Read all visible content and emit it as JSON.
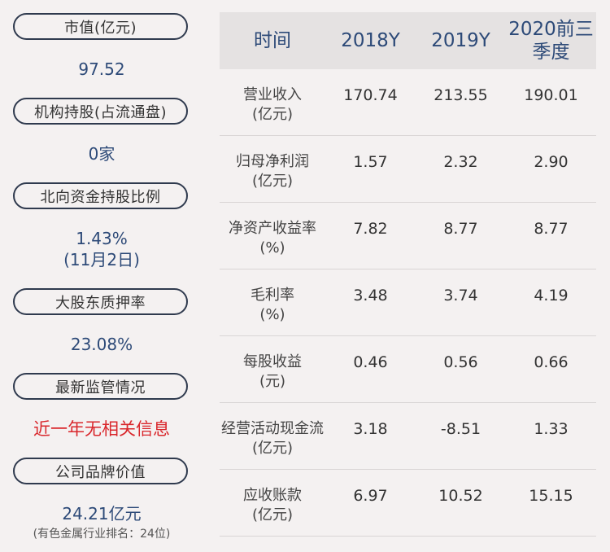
{
  "left_panel": {
    "items": [
      {
        "label": "市值(亿元)",
        "value": "97.52"
      },
      {
        "label": "机构持股(占流通盘)",
        "value": "0家"
      },
      {
        "label": "北向资金持股比例",
        "value": "1.43%",
        "value2": "(11月2日)"
      },
      {
        "label": "大股东质押率",
        "value": "23.08%"
      },
      {
        "label": "最新监管情况",
        "value": "近一年无相关信息"
      },
      {
        "label": "公司品牌价值",
        "value": "24.21亿元",
        "note": "(有色金属行业排名：24位)"
      }
    ]
  },
  "table": {
    "headers": [
      "时间",
      "2018Y",
      "2019Y",
      "2020前三季度"
    ],
    "rows": [
      {
        "label1": "营业收入",
        "label2": "(亿元)",
        "values": [
          "170.74",
          "213.55",
          "190.01"
        ]
      },
      {
        "label1": "归母净利润",
        "label2": "(亿元)",
        "values": [
          "1.57",
          "2.32",
          "2.90"
        ]
      },
      {
        "label1": "净资产收益率",
        "label2": "(%)",
        "values": [
          "7.82",
          "8.77",
          "8.77"
        ]
      },
      {
        "label1": "毛利率",
        "label2": "(%)",
        "values": [
          "3.48",
          "3.74",
          "4.19"
        ]
      },
      {
        "label1": "每股收益",
        "label2": "(元)",
        "values": [
          "0.46",
          "0.56",
          "0.66"
        ]
      },
      {
        "label1": "经营活动现金流",
        "label2": "(亿元)",
        "values": [
          "3.18",
          "-8.51",
          "1.33"
        ]
      },
      {
        "label1": "应收账款",
        "label2": "(亿元)",
        "values": [
          "6.97",
          "10.52",
          "15.15"
        ]
      }
    ]
  },
  "colors": {
    "accent_blue": "#2d4a78",
    "alert_red": "#d9262b",
    "pill_border": "#2f3a4e"
  }
}
